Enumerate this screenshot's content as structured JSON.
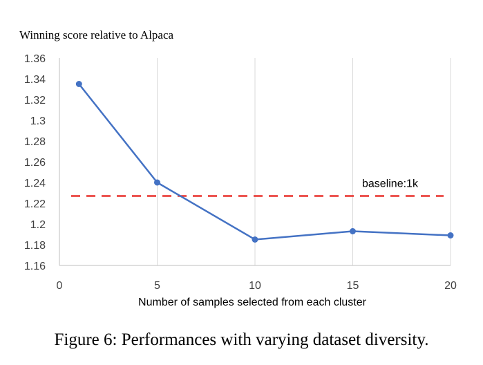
{
  "chart_data": {
    "type": "line",
    "title": "Winning score relative to Alpaca",
    "xlabel": "Number of samples selected from each cluster",
    "ylabel": "",
    "xlim": [
      0,
      20
    ],
    "ylim": [
      1.16,
      1.36
    ],
    "x_ticks": [
      "0",
      "5",
      "10",
      "15",
      "20"
    ],
    "y_ticks": [
      "1.16",
      "1.18",
      "1.2",
      "1.22",
      "1.24",
      "1.26",
      "1.28",
      "1.3",
      "1.32",
      "1.34",
      "1.36"
    ],
    "x_tick_values": [
      0,
      5,
      10,
      15,
      20
    ],
    "y_tick_values": [
      1.16,
      1.18,
      1.2,
      1.22,
      1.24,
      1.26,
      1.28,
      1.3,
      1.32,
      1.34,
      1.36
    ],
    "grid": "vertical",
    "series": [
      {
        "x": [
          1,
          5,
          10,
          15,
          20
        ],
        "values": [
          1.335,
          1.24,
          1.185,
          1.193,
          1.189
        ],
        "color": "#4472C4"
      }
    ],
    "baseline": {
      "label": "baseline:1k",
      "value": 1.227,
      "color": "#E8312B"
    }
  },
  "caption": "Figure 6: Performances with varying dataset diversity."
}
